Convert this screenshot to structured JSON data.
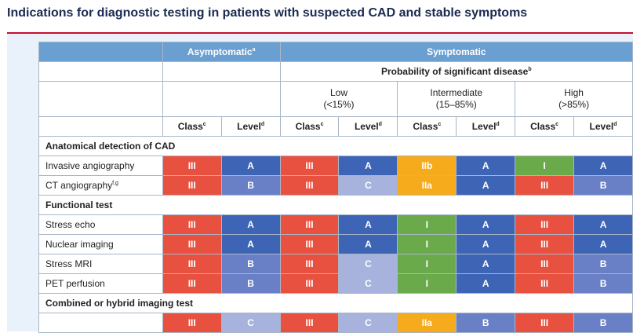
{
  "title": "Indications for diagnostic testing in patients with suspected CAD and stable symptoms",
  "colors": {
    "III": "#e8513f",
    "IIb": "#f6ab1d",
    "IIa": "#f6ab1d",
    "I": "#6aaa4b",
    "A": "#3d64b5",
    "B": "#6a80c6",
    "C": "#a7b3dd"
  },
  "header": {
    "asymptomatic": "Asymptomatic",
    "asymptomatic_sup": "a",
    "symptomatic": "Symptomatic",
    "probability": "Probability of significant disease",
    "probability_sup": "b",
    "low": "Low",
    "low_range": "(<15%)",
    "intermediate": "Intermediate",
    "intermediate_range": "(15–85%)",
    "high": "High",
    "high_range": "(>85%)",
    "class_label": "Class",
    "class_sup": "c",
    "level_label": "Level",
    "level_sup": "d"
  },
  "sections": [
    {
      "title": "Anatomical detection of CAD",
      "rows": [
        {
          "label": "Invasive angiography",
          "sup": "",
          "cells": [
            "III",
            "A",
            "III",
            "A",
            "IIb",
            "A",
            "I",
            "A"
          ]
        },
        {
          "label": "CT angiography",
          "sup": "f,g",
          "cells": [
            "III",
            "B",
            "III",
            "C",
            "IIa",
            "A",
            "III",
            "B"
          ]
        }
      ]
    },
    {
      "title": "Functional test",
      "rows": [
        {
          "label": "Stress echo",
          "sup": "",
          "cells": [
            "III",
            "A",
            "III",
            "A",
            "I",
            "A",
            "III",
            "A"
          ]
        },
        {
          "label": "Nuclear imaging",
          "sup": "",
          "cells": [
            "III",
            "A",
            "III",
            "A",
            "I",
            "A",
            "III",
            "A"
          ]
        },
        {
          "label": "Stress MRI",
          "sup": "",
          "cells": [
            "III",
            "B",
            "III",
            "C",
            "I",
            "A",
            "III",
            "B"
          ]
        },
        {
          "label": "PET perfusion",
          "sup": "",
          "cells": [
            "III",
            "B",
            "III",
            "C",
            "I",
            "A",
            "III",
            "B"
          ]
        }
      ]
    },
    {
      "title": "Combined or hybrid imaging test",
      "rows": [
        {
          "label": "",
          "sup": "",
          "cells": [
            "III",
            "C",
            "III",
            "C",
            "IIa",
            "B",
            "III",
            "B"
          ]
        }
      ]
    }
  ]
}
